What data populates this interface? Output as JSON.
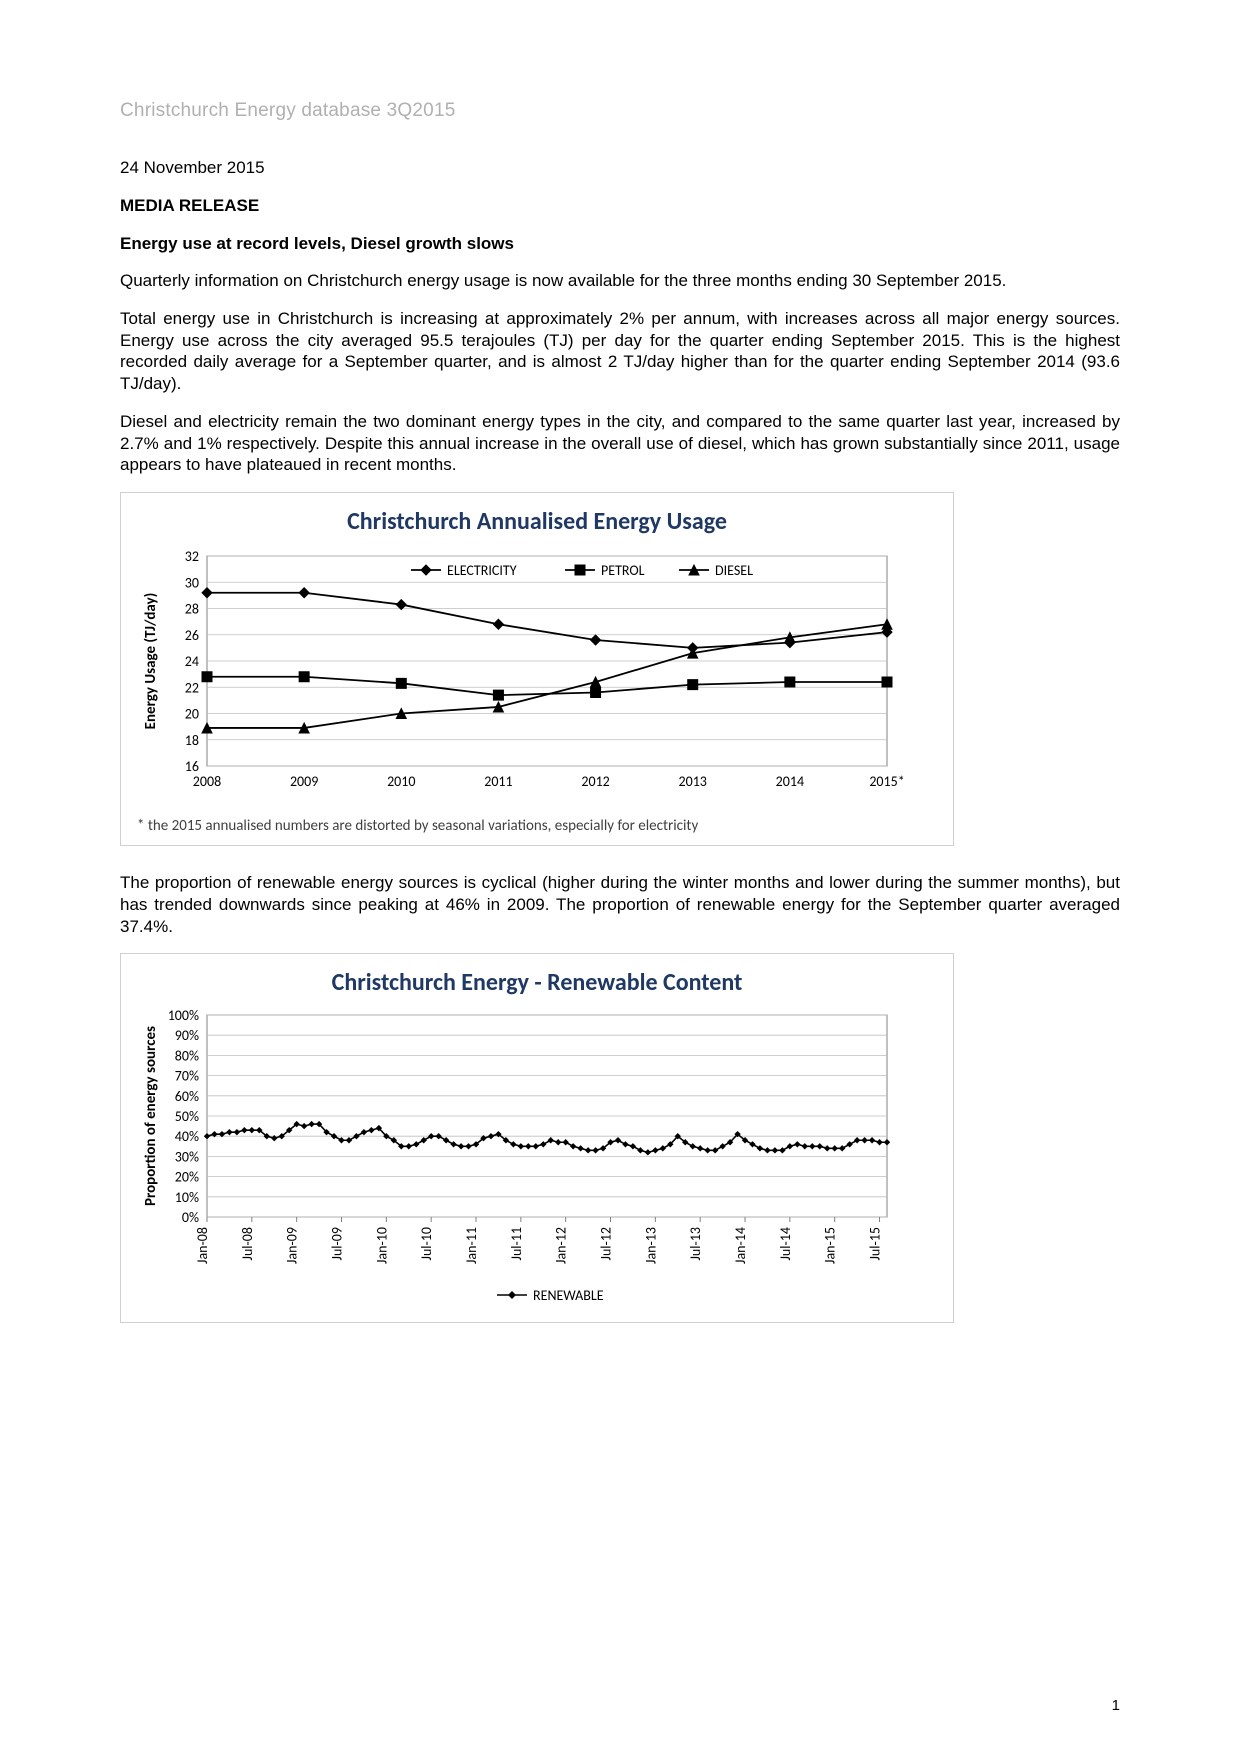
{
  "header": {
    "document_title": "Christchurch Energy database 3Q2015"
  },
  "date": "24 November 2015",
  "release_label": "MEDIA RELEASE",
  "headline": "Energy use at record levels, Diesel growth slows",
  "paragraphs": {
    "p1": "Quarterly information on Christchurch energy usage is now available for the three months ending 30 September 2015.",
    "p2": "Total energy use in Christchurch is increasing at approximately 2% per annum, with increases across all major energy sources. Energy use across the city averaged 95.5 terajoules (TJ) per day for the quarter ending September 2015. This is the highest recorded daily average for a September quarter, and is almost 2 TJ/day higher than for the quarter ending September 2014 (93.6 TJ/day).",
    "p3": "Diesel and electricity remain the two dominant energy types in the city, and compared to the same quarter last year, increased by 2.7% and 1% respectively. Despite this annual increase in the overall use of diesel, which has grown substantially since 2011, usage appears to have plateaued in recent months.",
    "p4": "The proportion of renewable energy sources is cyclical (higher during the winter months and lower during the summer months), but has trended downwards since peaking at 46% in 2009. The proportion of renewable energy for the September quarter averaged 37.4%."
  },
  "chart1": {
    "type": "line",
    "title": "Christchurch Annualised Energy Usage",
    "footnote": "* the 2015 annualised numbers are distorted by seasonal variations, especially for electricity",
    "ylabel": "Energy Usage (TJ/day)",
    "x_categories": [
      "2008",
      "2009",
      "2010",
      "2011",
      "2012",
      "2013",
      "2014",
      "2015*"
    ],
    "ylim": [
      16,
      32
    ],
    "ytick_step": 2,
    "series": [
      {
        "name": "ELECTRICITY",
        "color": "#000000",
        "marker": "diamond",
        "values": [
          29.2,
          29.2,
          28.3,
          26.8,
          25.6,
          25.0,
          25.4,
          26.2
        ]
      },
      {
        "name": "PETROL",
        "color": "#000000",
        "marker": "square",
        "values": [
          22.8,
          22.8,
          22.3,
          21.4,
          21.6,
          22.2,
          22.4,
          22.4
        ]
      },
      {
        "name": "DIESEL",
        "color": "#000000",
        "marker": "triangle",
        "values": [
          18.9,
          18.9,
          20.0,
          20.5,
          22.4,
          24.6,
          25.8,
          26.8
        ]
      }
    ],
    "background_color": "#ffffff",
    "grid_color": "#bfbfbf",
    "title_fontsize": 24,
    "label_fontsize": 15
  },
  "chart2": {
    "type": "line",
    "title": "Christchurch Energy - Renewable Content",
    "ylabel": "Proportion of energy sources",
    "x_categories": [
      "Jan-08",
      "Jul-08",
      "Jan-09",
      "Jul-09",
      "Jan-10",
      "Jul-10",
      "Jan-11",
      "Jul-11",
      "Jan-12",
      "Jul-12",
      "Jan-13",
      "Jul-13",
      "Jan-14",
      "Jul-14",
      "Jan-15",
      "Jul-15"
    ],
    "ylim": [
      0,
      100
    ],
    "ytick_step": 10,
    "series": [
      {
        "name": "RENEWABLE",
        "color": "#000000",
        "marker": "diamond",
        "values_monthly": [
          40,
          41,
          41,
          42,
          42,
          43,
          43,
          43,
          40,
          39,
          40,
          43,
          46,
          45,
          46,
          46,
          42,
          40,
          38,
          38,
          40,
          42,
          43,
          44,
          40,
          38,
          35,
          35,
          36,
          38,
          40,
          40,
          38,
          36,
          35,
          35,
          36,
          39,
          40,
          41,
          38,
          36,
          35,
          35,
          35,
          36,
          38,
          37,
          37,
          35,
          34,
          33,
          33,
          34,
          37,
          38,
          36,
          35,
          33,
          32,
          33,
          34,
          36,
          40,
          37,
          35,
          34,
          33,
          33,
          35,
          37,
          41,
          38,
          36,
          34,
          33,
          33,
          33,
          35,
          36,
          35,
          35,
          35,
          34,
          34,
          34,
          36,
          38,
          38,
          38,
          37,
          37
        ]
      }
    ],
    "legend_label": "RENEWABLE",
    "background_color": "#ffffff",
    "grid_color": "#bfbfbf",
    "title_fontsize": 24,
    "label_fontsize": 15
  },
  "page_number": "1"
}
